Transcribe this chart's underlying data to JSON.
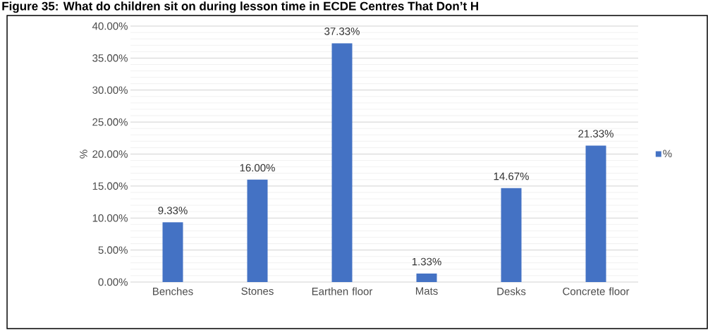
{
  "chart_data": {
    "type": "bar",
    "title": "Figure 35: What do children sit on during lesson time in ECDE Centres That Don’t H",
    "ylabel": "%",
    "categories": [
      "Benches",
      "Stones",
      "Earthen floor",
      "Mats",
      "Desks",
      "Concrete floor"
    ],
    "series": [
      {
        "name": "%",
        "color": "#4472c4",
        "values": [
          9.33,
          16.0,
          37.33,
          1.33,
          14.67,
          21.33
        ],
        "value_labels": [
          "9.33%",
          "16.00%",
          "37.33%",
          "1.33%",
          "14.67%",
          "21.33%"
        ]
      }
    ],
    "ylim": [
      0,
      40
    ],
    "yticks": [
      {
        "value": 0,
        "label": "0.00%"
      },
      {
        "value": 5,
        "label": "5.00%"
      },
      {
        "value": 10,
        "label": "10.00%"
      },
      {
        "value": 15,
        "label": "15.00%"
      },
      {
        "value": 20,
        "label": "20.00%"
      },
      {
        "value": 25,
        "label": "25.00%"
      },
      {
        "value": 30,
        "label": "30.00%"
      },
      {
        "value": 35,
        "label": "35.00%"
      },
      {
        "value": 40,
        "label": "40.00%"
      }
    ],
    "grid": "y",
    "legend": "right"
  }
}
